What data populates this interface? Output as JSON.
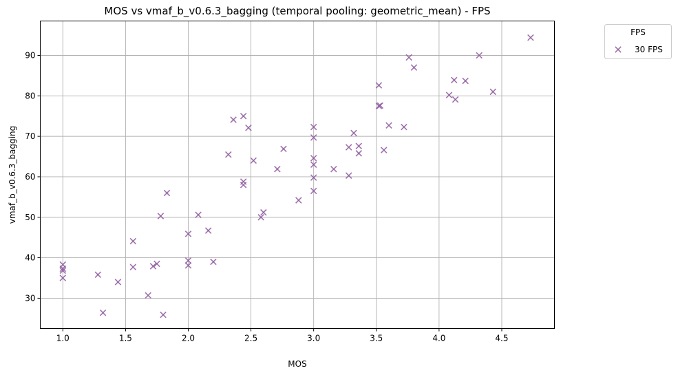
{
  "chart_data": {
    "type": "scatter",
    "title": "MOS vs vmaf_b_v0.6.3_bagging (temporal pooling: geometric_mean) - FPS",
    "xlabel": "MOS",
    "ylabel": "vmaf_b_v0.6.3_bagging",
    "xlim": [
      0.82,
      4.92
    ],
    "ylim": [
      22.5,
      98.5
    ],
    "xticks": [
      1.0,
      1.5,
      2.0,
      2.5,
      3.0,
      3.5,
      4.0,
      4.5
    ],
    "xtick_labels": [
      "1.0",
      "1.5",
      "2.0",
      "2.5",
      "3.0",
      "3.5",
      "4.0",
      "4.5"
    ],
    "yticks": [
      30,
      40,
      50,
      60,
      70,
      80,
      90
    ],
    "ytick_labels": [
      "30",
      "40",
      "50",
      "60",
      "70",
      "80",
      "90"
    ],
    "grid": true,
    "legend": {
      "title": "FPS",
      "placement": "outside-top-right"
    },
    "series": [
      {
        "name": "30 FPS",
        "marker": "x",
        "color": "#8e5a9e",
        "points": [
          [
            1.0,
            38.3
          ],
          [
            1.0,
            37.3
          ],
          [
            1.0,
            36.8
          ],
          [
            1.0,
            35.0
          ],
          [
            1.28,
            35.8
          ],
          [
            1.32,
            26.4
          ],
          [
            1.44,
            34.0
          ],
          [
            1.56,
            44.1
          ],
          [
            1.56,
            37.7
          ],
          [
            1.68,
            30.7
          ],
          [
            1.72,
            37.9
          ],
          [
            1.75,
            38.5
          ],
          [
            1.78,
            50.3
          ],
          [
            1.8,
            25.9
          ],
          [
            1.83,
            56.0
          ],
          [
            2.0,
            45.9
          ],
          [
            2.0,
            39.3
          ],
          [
            2.0,
            38.1
          ],
          [
            2.08,
            50.6
          ],
          [
            2.16,
            46.7
          ],
          [
            2.2,
            39.0
          ],
          [
            2.32,
            65.5
          ],
          [
            2.36,
            74.1
          ],
          [
            2.44,
            75.0
          ],
          [
            2.44,
            58.8
          ],
          [
            2.44,
            58.0
          ],
          [
            2.48,
            72.1
          ],
          [
            2.52,
            64.0
          ],
          [
            2.58,
            50.0
          ],
          [
            2.6,
            51.2
          ],
          [
            2.71,
            61.9
          ],
          [
            2.76,
            66.9
          ],
          [
            2.88,
            54.2
          ],
          [
            3.0,
            72.3
          ],
          [
            3.0,
            69.7
          ],
          [
            3.0,
            64.6
          ],
          [
            3.0,
            63.0
          ],
          [
            3.0,
            59.8
          ],
          [
            3.0,
            56.5
          ],
          [
            3.16,
            61.9
          ],
          [
            3.28,
            67.3
          ],
          [
            3.28,
            60.3
          ],
          [
            3.32,
            70.8
          ],
          [
            3.36,
            67.6
          ],
          [
            3.36,
            65.8
          ],
          [
            3.52,
            82.6
          ],
          [
            3.52,
            77.5
          ],
          [
            3.53,
            77.6
          ],
          [
            3.56,
            66.6
          ],
          [
            3.6,
            72.7
          ],
          [
            3.72,
            72.3
          ],
          [
            3.76,
            89.5
          ],
          [
            3.8,
            87.0
          ],
          [
            4.08,
            80.2
          ],
          [
            4.12,
            83.9
          ],
          [
            4.13,
            79.1
          ],
          [
            4.21,
            83.7
          ],
          [
            4.32,
            90.0
          ],
          [
            4.43,
            81.0
          ],
          [
            4.73,
            94.4
          ]
        ]
      }
    ]
  }
}
